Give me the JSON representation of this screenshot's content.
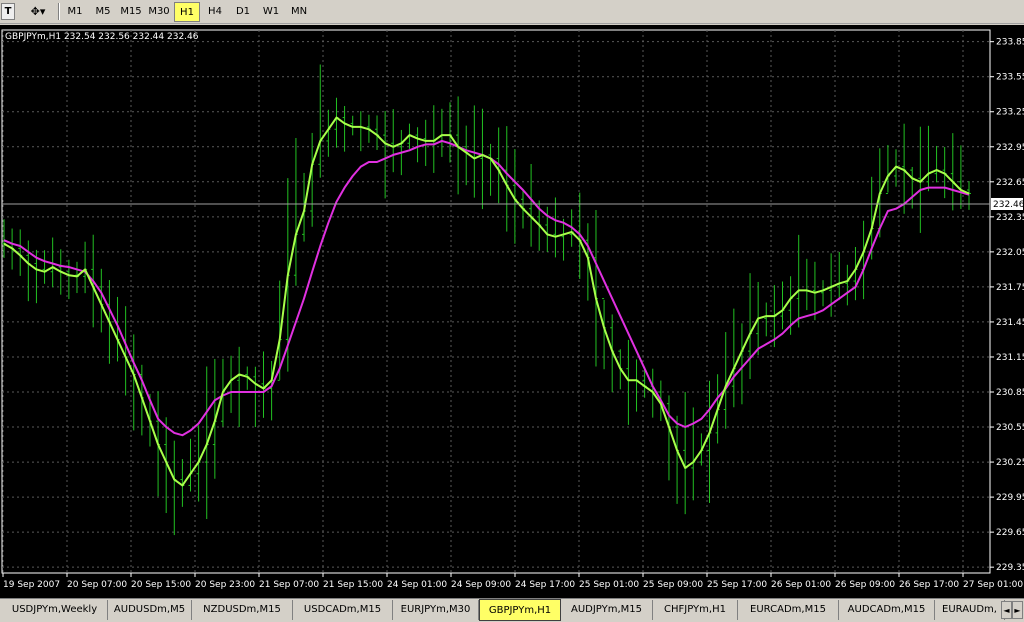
{
  "toolbar": {
    "tools": [
      {
        "name": "text-tool",
        "glyph": "T"
      },
      {
        "name": "draw-tools",
        "glyph": "✥▾"
      }
    ],
    "timeframes": [
      "M1",
      "M5",
      "M15",
      "M30",
      "H1",
      "H4",
      "D1",
      "W1",
      "MN"
    ],
    "active_timeframe": "H1"
  },
  "chart": {
    "header": "GBPJPYm,H1  232.54 232.56 232.44 232.46",
    "current_price": "232.46",
    "colors": {
      "background": "#000000",
      "grid": "#5a5a5a",
      "bars": "#22c022",
      "fast_ma": "#a8ff4a",
      "slow_ma": "#e030e0",
      "price_line": "#a0a0a0"
    }
  },
  "chart_data": {
    "type": "line",
    "symbol": "GBPJPYm",
    "timeframe": "H1",
    "ylim": [
      229.3,
      233.95
    ],
    "y_ticks": [
      233.85,
      233.55,
      233.25,
      232.95,
      232.65,
      232.35,
      232.05,
      231.75,
      231.45,
      231.15,
      230.85,
      230.55,
      230.25,
      229.95,
      229.65,
      229.35
    ],
    "x_ticks": [
      "19 Sep 2007",
      "20 Sep 07:00",
      "20 Sep 15:00",
      "20 Sep 23:00",
      "21 Sep 07:00",
      "21 Sep 15:00",
      "24 Sep 01:00",
      "24 Sep 09:00",
      "24 Sep 17:00",
      "25 Sep 01:00",
      "25 Sep 09:00",
      "25 Sep 17:00",
      "26 Sep 01:00",
      "26 Sep 09:00",
      "26 Sep 17:00",
      "27 Sep 01:00"
    ],
    "bar_count": 120,
    "last_price": 232.46,
    "series": [
      {
        "values": [
          232.12,
          232.08,
          232.02,
          231.95,
          231.9,
          231.88,
          231.92,
          231.88,
          231.85,
          231.84,
          231.9,
          231.75,
          231.6,
          231.45,
          231.3,
          231.15,
          231.0,
          230.8,
          230.6,
          230.4,
          230.25,
          230.1,
          230.05,
          230.15,
          230.25,
          230.4,
          230.6,
          230.85,
          230.95,
          231.0,
          230.98,
          230.92,
          230.88,
          230.95,
          231.3,
          231.85,
          232.2,
          232.4,
          232.8,
          233.0,
          233.1,
          233.2,
          233.15,
          233.12,
          233.12,
          233.1,
          233.05,
          232.98,
          232.95,
          232.98,
          233.05,
          233.02,
          233.0,
          233.0,
          233.05,
          233.05,
          232.95,
          232.9,
          232.85,
          232.88,
          232.85,
          232.75,
          232.62,
          232.5,
          232.42,
          232.35,
          232.28,
          232.2,
          232.18,
          232.2,
          232.22,
          232.15,
          232.0,
          231.65,
          231.4,
          231.2,
          231.05,
          230.95,
          230.95,
          230.9,
          230.85,
          230.75,
          230.55,
          230.35,
          230.2,
          230.25,
          230.35,
          230.5,
          230.7,
          230.9,
          231.05,
          231.2,
          231.35,
          231.48,
          231.5,
          231.5,
          231.55,
          231.65,
          231.72,
          231.72,
          231.7,
          231.72,
          231.75,
          231.78,
          231.8,
          231.9,
          232.05,
          232.25,
          232.55,
          232.7,
          232.78,
          232.75,
          232.68,
          232.65,
          232.72,
          232.75,
          232.72,
          232.65,
          232.58,
          232.55
        ]
      },
      {
        "values": [
          232.15,
          232.12,
          232.1,
          232.05,
          232.0,
          231.97,
          231.95,
          231.93,
          231.92,
          231.9,
          231.88,
          231.8,
          231.7,
          231.56,
          231.42,
          231.26,
          231.1,
          230.95,
          230.78,
          230.62,
          230.55,
          230.5,
          230.48,
          230.52,
          230.58,
          230.68,
          230.78,
          230.82,
          230.85,
          230.85,
          230.85,
          230.85,
          230.85,
          230.9,
          231.05,
          231.25,
          231.45,
          231.65,
          231.88,
          232.1,
          232.3,
          232.48,
          232.6,
          232.7,
          232.78,
          232.82,
          232.82,
          232.85,
          232.88,
          232.9,
          232.92,
          232.95,
          232.97,
          232.97,
          233.0,
          232.98,
          232.95,
          232.92,
          232.9,
          232.88,
          232.85,
          232.8,
          232.72,
          232.65,
          232.58,
          232.5,
          232.42,
          232.36,
          232.32,
          232.3,
          232.26,
          232.2,
          232.1,
          231.95,
          231.8,
          231.65,
          231.5,
          231.35,
          231.2,
          231.05,
          230.9,
          230.78,
          230.65,
          230.58,
          230.55,
          230.58,
          230.62,
          230.7,
          230.8,
          230.88,
          230.98,
          231.06,
          231.14,
          231.22,
          231.26,
          231.3,
          231.35,
          231.42,
          231.48,
          231.5,
          231.52,
          231.55,
          231.6,
          231.65,
          231.7,
          231.75,
          231.9,
          232.08,
          232.25,
          232.4,
          232.42,
          232.46,
          232.52,
          232.58,
          232.6,
          232.6,
          232.6,
          232.58,
          232.56,
          232.54
        ]
      }
    ]
  },
  "tabs": [
    "USDJPYm,Weekly",
    "AUDUSDm,M5",
    "NZDUSDm,M15",
    "USDCADm,M15",
    "EURJPYm,M30",
    "GBPJPYm,H1",
    "AUDJPYm,M15",
    "CHFJPYm,H1",
    "EURCADm,M15",
    "AUDCADm,M15",
    "EURAUDm,"
  ],
  "active_tab": "GBPJPYm,H1",
  "tab_scroll": [
    "◄",
    "►"
  ]
}
